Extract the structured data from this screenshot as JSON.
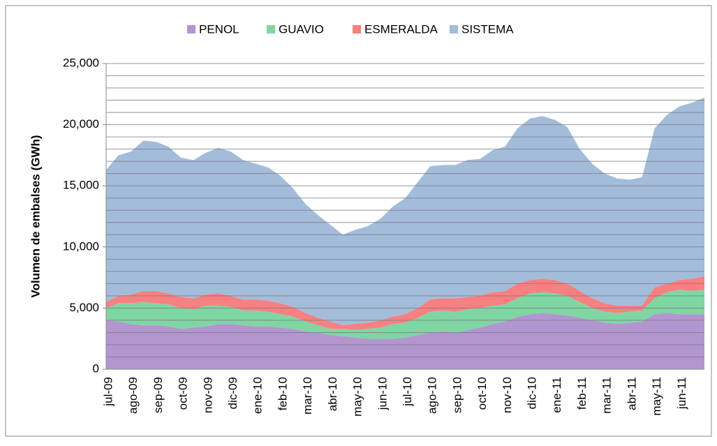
{
  "chart_data": {
    "type": "stacked_area",
    "ylabel": "Volumen de embalses (GWh)",
    "categories": [
      "jul-09",
      null,
      "ago-09",
      null,
      "sep-09",
      null,
      "oct-09",
      null,
      "nov-09",
      null,
      "dic-09",
      null,
      "ene-10",
      null,
      "feb-10",
      null,
      "mar-10",
      null,
      "abr-10",
      null,
      "may-10",
      null,
      "jun-10",
      null,
      "jul-10",
      null,
      "ago-10",
      null,
      "sep-10",
      null,
      "oct-10",
      null,
      "nov-10",
      null,
      "dic-10",
      null,
      "ene-11",
      null,
      "feb-11",
      null,
      "mar-11",
      null,
      "abr-11",
      null,
      "may-11",
      null,
      "jun-11",
      null,
      null
    ],
    "series": [
      {
        "name": "PENOL",
        "color": "#b296cf",
        "values": [
          4000,
          3900,
          3700,
          3600,
          3600,
          3500,
          3300,
          3400,
          3500,
          3700,
          3700,
          3600,
          3500,
          3500,
          3400,
          3300,
          3100,
          3000,
          2800,
          2700,
          2600,
          2500,
          2500,
          2500,
          2600,
          2800,
          3000,
          3100,
          3000,
          3200,
          3400,
          3700,
          3900,
          4300,
          4500,
          4600,
          4500,
          4400,
          4200,
          4000,
          3800,
          3700,
          3800,
          3900,
          4500,
          4600,
          4500,
          4500,
          4500
        ]
      },
      {
        "name": "GUAVIO",
        "color": "#7fd6a3",
        "values": [
          1000,
          1500,
          1700,
          1900,
          1800,
          1800,
          1700,
          1500,
          1700,
          1500,
          1400,
          1200,
          1300,
          1200,
          1100,
          1000,
          800,
          600,
          500,
          600,
          600,
          800,
          900,
          1200,
          1200,
          1400,
          1700,
          1700,
          1700,
          1700,
          1600,
          1500,
          1400,
          1500,
          1700,
          1700,
          1700,
          1600,
          1300,
          1000,
          900,
          900,
          900,
          900,
          1300,
          1700,
          2000,
          1900,
          2000
        ]
      },
      {
        "name": "ESMERALDA",
        "color": "#f78080",
        "values": [
          500,
          600,
          700,
          900,
          1000,
          900,
          900,
          900,
          900,
          1000,
          900,
          900,
          900,
          900,
          900,
          800,
          700,
          600,
          600,
          300,
          500,
          500,
          600,
          600,
          700,
          800,
          1000,
          1000,
          1100,
          1000,
          1000,
          1100,
          1100,
          1200,
          1100,
          1100,
          1100,
          1000,
          900,
          800,
          700,
          600,
          500,
          400,
          900,
          700,
          800,
          1000,
          1100
        ]
      },
      {
        "name": "SISTEMA",
        "color": "#a3bcd9",
        "values": [
          10800,
          11500,
          11700,
          12300,
          12200,
          12000,
          11400,
          11300,
          11600,
          11900,
          11800,
          11400,
          11100,
          10900,
          10400,
          9700,
          8900,
          8400,
          7900,
          7400,
          7700,
          7900,
          8300,
          9000,
          9500,
          10300,
          10900,
          10900,
          10900,
          11200,
          11200,
          11600,
          11800,
          12700,
          13200,
          13300,
          13100,
          12800,
          11600,
          11000,
          10600,
          10400,
          10300,
          10500,
          13000,
          13800,
          14200,
          14400,
          14600
        ]
      }
    ],
    "ylim": [
      0,
      25000
    ],
    "yticks": [
      0,
      {
        "value": 5000,
        "label": "5,000"
      },
      {
        "value": 10000,
        "label": "10,000"
      },
      {
        "value": 15000,
        "label": "15,000"
      },
      {
        "value": 20000,
        "label": "20,000"
      },
      {
        "value": 25000,
        "label": "25,000"
      }
    ],
    "minor_yticks": [
      1000,
      2000,
      3000,
      4000,
      5000,
      6000,
      7000,
      8000,
      9000,
      10000,
      11000,
      12000,
      13000,
      14000,
      15000,
      16000,
      17000,
      18000,
      19000,
      20000,
      21000,
      22000,
      23000,
      24000,
      25000
    ],
    "grid": true,
    "legend": "top"
  }
}
